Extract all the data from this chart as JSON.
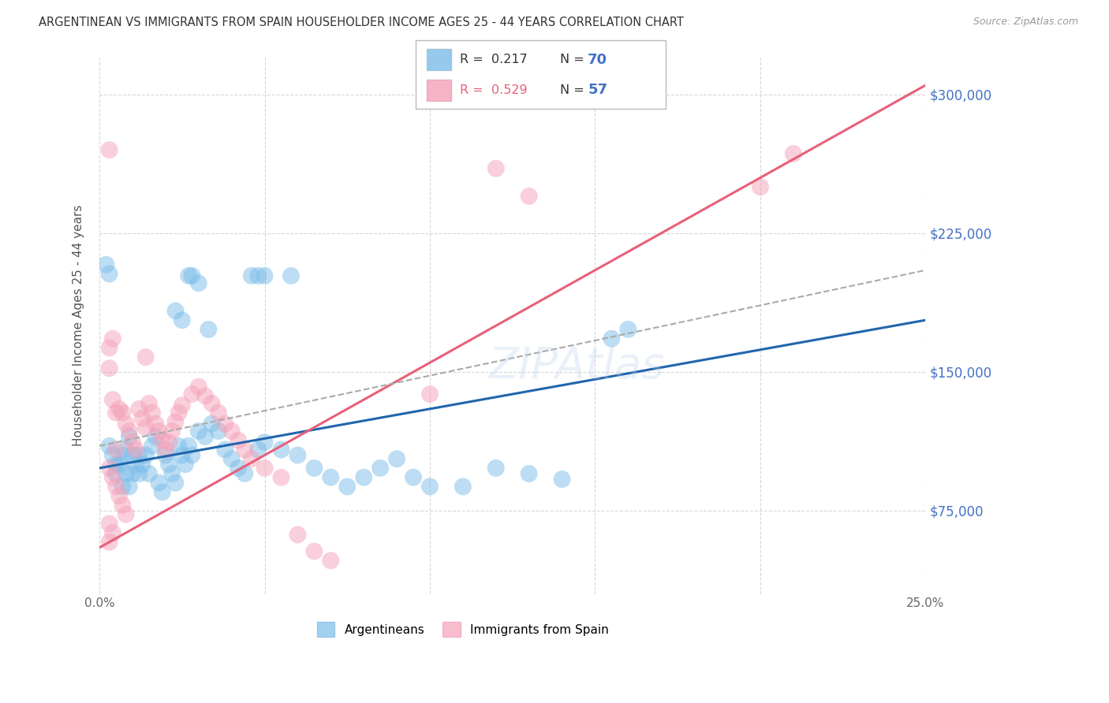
{
  "title": "ARGENTINEAN VS IMMIGRANTS FROM SPAIN HOUSEHOLDER INCOME AGES 25 - 44 YEARS CORRELATION CHART",
  "source": "Source: ZipAtlas.com",
  "ylabel": "Householder Income Ages 25 - 44 years",
  "xlim": [
    0.0,
    0.25
  ],
  "ylim": [
    30000,
    320000
  ],
  "yticks": [
    75000,
    150000,
    225000,
    300000
  ],
  "ytick_labels": [
    "$75,000",
    "$150,000",
    "$225,000",
    "$300,000"
  ],
  "xticks": [
    0.0,
    0.05,
    0.1,
    0.15,
    0.2,
    0.25
  ],
  "xtick_labels": [
    "0.0%",
    "",
    "",
    "",
    "",
    "25.0%"
  ],
  "blue_color": "#7bbde8",
  "pink_color": "#f4a0b8",
  "line_blue": "#2166ac",
  "line_pink": "#e8607a",
  "dashed_line_color": "#aaaaaa",
  "bg_color": "#ffffff",
  "grid_color": "#cccccc",
  "title_color": "#333333",
  "ytick_color": "#4472c4",
  "blue_scatter_x": [
    0.003,
    0.004,
    0.005,
    0.005,
    0.006,
    0.007,
    0.007,
    0.008,
    0.008,
    0.009,
    0.009,
    0.01,
    0.01,
    0.011,
    0.012,
    0.012,
    0.013,
    0.014,
    0.015,
    0.016,
    0.017,
    0.018,
    0.019,
    0.02,
    0.021,
    0.022,
    0.023,
    0.024,
    0.025,
    0.026,
    0.027,
    0.028,
    0.03,
    0.032,
    0.034,
    0.036,
    0.038,
    0.04,
    0.042,
    0.044,
    0.048,
    0.05,
    0.055,
    0.06,
    0.065,
    0.07,
    0.075,
    0.08,
    0.085,
    0.09,
    0.095,
    0.1,
    0.11,
    0.12,
    0.13,
    0.14,
    0.002,
    0.003,
    0.027,
    0.028,
    0.03,
    0.046,
    0.048,
    0.05,
    0.058,
    0.023,
    0.025,
    0.033,
    0.155,
    0.16
  ],
  "blue_scatter_y": [
    110000,
    105000,
    100000,
    95000,
    100000,
    105000,
    88000,
    95000,
    108000,
    115000,
    88000,
    95000,
    105000,
    100000,
    105000,
    95000,
    100000,
    105000,
    95000,
    110000,
    115000,
    90000,
    85000,
    105000,
    100000,
    95000,
    90000,
    110000,
    105000,
    100000,
    110000,
    105000,
    118000,
    115000,
    122000,
    118000,
    108000,
    103000,
    98000,
    95000,
    108000,
    112000,
    108000,
    105000,
    98000,
    93000,
    88000,
    93000,
    98000,
    103000,
    93000,
    88000,
    88000,
    98000,
    95000,
    92000,
    208000,
    203000,
    202000,
    202000,
    198000,
    202000,
    202000,
    202000,
    202000,
    183000,
    178000,
    173000,
    168000,
    173000
  ],
  "pink_scatter_x": [
    0.003,
    0.003,
    0.004,
    0.004,
    0.005,
    0.005,
    0.006,
    0.007,
    0.008,
    0.009,
    0.01,
    0.011,
    0.012,
    0.013,
    0.014,
    0.015,
    0.016,
    0.017,
    0.018,
    0.019,
    0.02,
    0.021,
    0.022,
    0.023,
    0.024,
    0.025,
    0.028,
    0.03,
    0.032,
    0.034,
    0.036,
    0.003,
    0.004,
    0.005,
    0.006,
    0.007,
    0.008,
    0.003,
    0.004,
    0.13,
    0.2,
    0.21,
    0.1,
    0.003,
    0.06,
    0.014,
    0.038,
    0.04,
    0.042,
    0.044,
    0.046,
    0.05,
    0.055,
    0.065,
    0.07,
    0.003,
    0.12
  ],
  "pink_scatter_y": [
    163000,
    152000,
    168000,
    135000,
    128000,
    108000,
    130000,
    128000,
    122000,
    118000,
    112000,
    108000,
    130000,
    125000,
    120000,
    133000,
    128000,
    122000,
    118000,
    113000,
    108000,
    112000,
    118000,
    123000,
    128000,
    132000,
    138000,
    142000,
    137000,
    133000,
    128000,
    98000,
    93000,
    88000,
    83000,
    78000,
    73000,
    68000,
    63000,
    245000,
    250000,
    268000,
    138000,
    58000,
    62000,
    158000,
    122000,
    118000,
    113000,
    108000,
    103000,
    98000,
    93000,
    53000,
    48000,
    270000,
    260000
  ],
  "blue_line_x": [
    0.0,
    0.25
  ],
  "blue_line_y": [
    98000,
    178000
  ],
  "pink_line_x": [
    0.0,
    0.25
  ],
  "pink_line_y": [
    55000,
    305000
  ],
  "dashed_line_x": [
    0.0,
    0.25
  ],
  "dashed_line_y": [
    110000,
    205000
  ]
}
